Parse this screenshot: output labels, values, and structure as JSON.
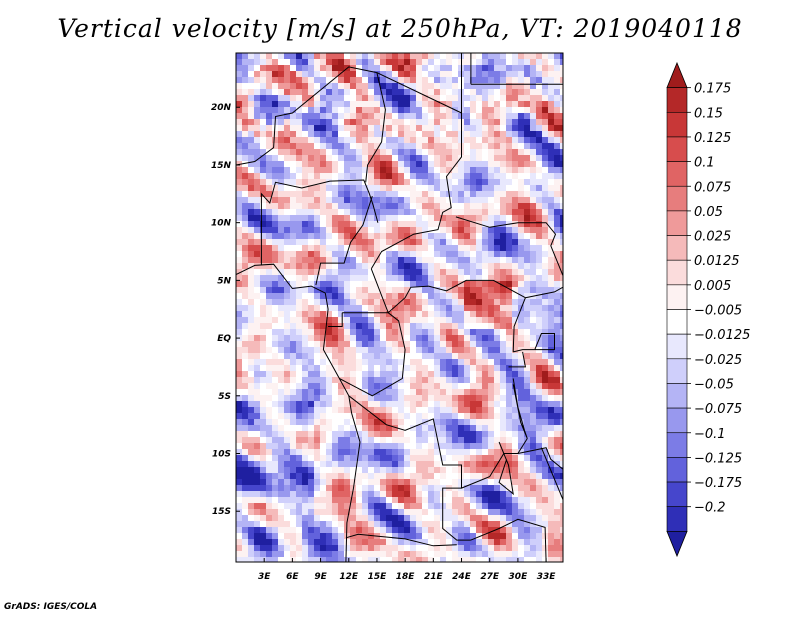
{
  "chart_data": {
    "type": "heatmap",
    "title": "Vertical velocity [m/s] at 250hPa, VT: 2019040118",
    "variable": "Vertical velocity",
    "units": "m/s",
    "level": "250hPa",
    "valid_time": "2019040118",
    "xlabel": "",
    "ylabel": "",
    "lon_range": [
      0,
      34.8
    ],
    "lat_range": [
      -19.4,
      24.7
    ],
    "x_ticks": [
      3,
      6,
      9,
      12,
      15,
      18,
      21,
      24,
      27,
      30,
      33
    ],
    "x_tick_labels": [
      "3E",
      "6E",
      "9E",
      "12E",
      "15E",
      "18E",
      "21E",
      "24E",
      "27E",
      "30E",
      "33E"
    ],
    "y_ticks": [
      20,
      15,
      10,
      5,
      0,
      -5,
      -10,
      -15
    ],
    "y_tick_labels": [
      "20N",
      "15N",
      "10N",
      "5N",
      "EQ",
      "5S",
      "10S",
      "15S"
    ],
    "colorbar": {
      "orientation": "vertical",
      "placement": "right",
      "extend": "both",
      "levels": [
        0.175,
        0.15,
        0.125,
        0.1,
        0.075,
        0.05,
        0.025,
        0.0125,
        0.005,
        -0.005,
        -0.0125,
        -0.025,
        -0.05,
        -0.075,
        -0.1,
        -0.125,
        -0.175,
        -0.2
      ],
      "level_labels": [
        "0.175",
        "0.15",
        "0.125",
        "0.1",
        "0.075",
        "0.05",
        "0.025",
        "0.0125",
        "0.005",
        "−0.005",
        "−0.0125",
        "−0.025",
        "−0.05",
        "−0.075",
        "−0.1",
        "−0.125",
        "−0.175",
        "−0.2"
      ],
      "colors_top_to_bottom": [
        "#a01c1c",
        "#b42828",
        "#c83737",
        "#d74d4d",
        "#e06464",
        "#e77d7d",
        "#ef9a9a",
        "#f5baba",
        "#fbdcdc",
        "#fdf2f2",
        "#ffffff",
        "#e8e8fd",
        "#cfcffb",
        "#b4b4f5",
        "#9898ee",
        "#7c7ce6",
        "#6262dc",
        "#4646cc",
        "#2f2fb7",
        "#1f1fa0"
      ]
    },
    "field_description": "Mottled field of alternating positive (red) and negative (blue) vertical velocity; strong ascent patches near 3N 27E and streaks over northern Sahara; predominantly descent (blue) over SW Atlantic corner and east edge.",
    "grid": false
  },
  "credit": "GrADS: IGES/COLA"
}
